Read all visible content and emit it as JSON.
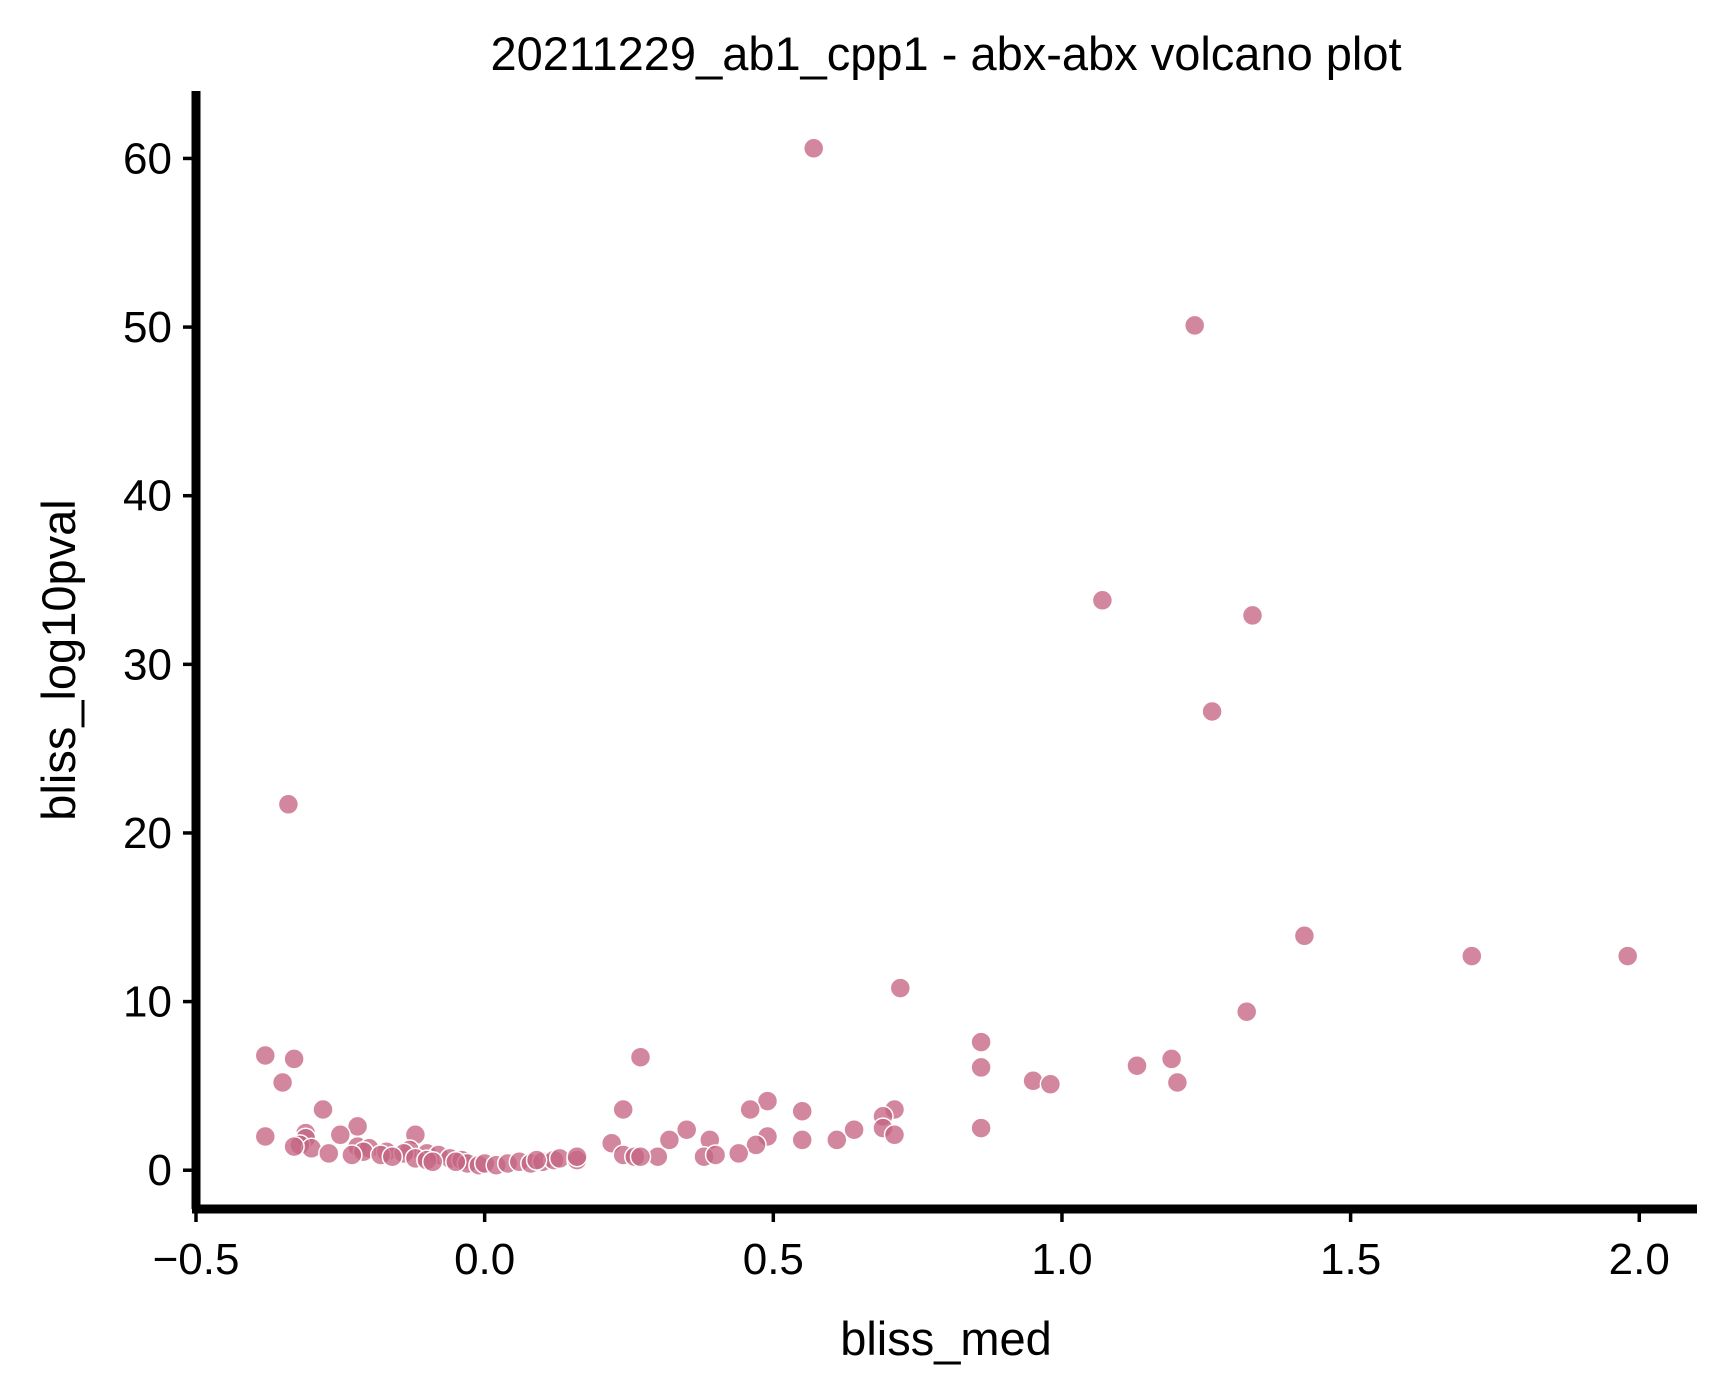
{
  "chart_data": {
    "type": "scatter",
    "title": "20211229_ab1_cpp1 - abx-abx volcano plot",
    "xlabel": "bliss_med",
    "ylabel": "bliss_log10pval",
    "xlim": [
      -0.5,
      2.1
    ],
    "ylim": [
      -2.3,
      64
    ],
    "xticks": [
      -0.5,
      0.0,
      0.5,
      1.0,
      1.5,
      2.0
    ],
    "xtick_labels": [
      "−0.5",
      "0.0",
      "0.5",
      "1.0",
      "1.5",
      "2.0"
    ],
    "yticks": [
      0,
      10,
      20,
      30,
      40,
      50,
      60
    ],
    "ytick_labels": [
      "0",
      "10",
      "20",
      "30",
      "40",
      "50",
      "60"
    ],
    "grid": false,
    "point_color": "#c56583",
    "point_edge_color": "#ffffff",
    "axis_color": "#000000",
    "points": [
      {
        "x": 0.57,
        "y": 60.6
      },
      {
        "x": 1.23,
        "y": 50.1
      },
      {
        "x": 1.07,
        "y": 33.8
      },
      {
        "x": 1.33,
        "y": 32.9
      },
      {
        "x": 1.26,
        "y": 27.2
      },
      {
        "x": -0.34,
        "y": 21.7
      },
      {
        "x": 1.42,
        "y": 13.9
      },
      {
        "x": 1.71,
        "y": 12.7
      },
      {
        "x": 1.98,
        "y": 12.7
      },
      {
        "x": 0.72,
        "y": 10.8
      },
      {
        "x": 1.32,
        "y": 9.4
      },
      {
        "x": 0.86,
        "y": 7.6
      },
      {
        "x": -0.38,
        "y": 6.8
      },
      {
        "x": -0.33,
        "y": 6.6
      },
      {
        "x": 0.27,
        "y": 6.7
      },
      {
        "x": 1.19,
        "y": 6.6
      },
      {
        "x": 0.86,
        "y": 6.1
      },
      {
        "x": 1.13,
        "y": 6.2
      },
      {
        "x": 0.95,
        "y": 5.3
      },
      {
        "x": 0.98,
        "y": 5.1
      },
      {
        "x": -0.35,
        "y": 5.2
      },
      {
        "x": 1.2,
        "y": 5.2
      },
      {
        "x": 0.49,
        "y": 4.1
      },
      {
        "x": -0.28,
        "y": 3.6
      },
      {
        "x": 0.24,
        "y": 3.6
      },
      {
        "x": 0.46,
        "y": 3.6
      },
      {
        "x": 0.55,
        "y": 3.5
      },
      {
        "x": 0.71,
        "y": 3.6
      },
      {
        "x": 0.69,
        "y": 3.2
      },
      {
        "x": 0.86,
        "y": 2.5
      },
      {
        "x": -0.22,
        "y": 2.6
      },
      {
        "x": 0.64,
        "y": 2.4
      },
      {
        "x": 0.69,
        "y": 2.5
      },
      {
        "x": 0.35,
        "y": 2.4
      },
      {
        "x": -0.31,
        "y": 2.2
      },
      {
        "x": -0.25,
        "y": 2.1
      },
      {
        "x": -0.12,
        "y": 2.1
      },
      {
        "x": -0.38,
        "y": 2.0
      },
      {
        "x": -0.31,
        "y": 1.9
      },
      {
        "x": 0.49,
        "y": 2.0
      },
      {
        "x": 0.71,
        "y": 2.1
      },
      {
        "x": 0.55,
        "y": 1.8
      },
      {
        "x": 0.61,
        "y": 1.8
      },
      {
        "x": 0.32,
        "y": 1.8
      },
      {
        "x": 0.39,
        "y": 1.8
      },
      {
        "x": 0.22,
        "y": 1.6
      },
      {
        "x": 0.47,
        "y": 1.5
      },
      {
        "x": -0.32,
        "y": 1.5
      },
      {
        "x": -0.3,
        "y": 1.3
      },
      {
        "x": -0.33,
        "y": 1.4
      },
      {
        "x": -0.22,
        "y": 1.4
      },
      {
        "x": -0.2,
        "y": 1.3
      },
      {
        "x": -0.21,
        "y": 1.1
      },
      {
        "x": -0.17,
        "y": 1.1
      },
      {
        "x": -0.13,
        "y": 1.2
      },
      {
        "x": -0.14,
        "y": 1.0
      },
      {
        "x": -0.1,
        "y": 1.0
      },
      {
        "x": -0.08,
        "y": 0.9
      },
      {
        "x": -0.27,
        "y": 1.0
      },
      {
        "x": -0.23,
        "y": 0.9
      },
      {
        "x": -0.18,
        "y": 0.9
      },
      {
        "x": -0.16,
        "y": 0.8
      },
      {
        "x": -0.12,
        "y": 0.7
      },
      {
        "x": -0.1,
        "y": 0.6
      },
      {
        "x": -0.06,
        "y": 0.7
      },
      {
        "x": -0.04,
        "y": 0.6
      },
      {
        "x": -0.03,
        "y": 0.4
      },
      {
        "x": -0.01,
        "y": 0.3
      },
      {
        "x": 0.0,
        "y": 0.4
      },
      {
        "x": 0.02,
        "y": 0.3
      },
      {
        "x": 0.04,
        "y": 0.4
      },
      {
        "x": 0.06,
        "y": 0.5
      },
      {
        "x": 0.08,
        "y": 0.4
      },
      {
        "x": 0.1,
        "y": 0.5
      },
      {
        "x": 0.12,
        "y": 0.6
      },
      {
        "x": 0.13,
        "y": 0.7
      },
      {
        "x": 0.16,
        "y": 0.6
      },
      {
        "x": 0.16,
        "y": 0.8
      },
      {
        "x": 0.09,
        "y": 0.6
      },
      {
        "x": -0.09,
        "y": 0.5
      },
      {
        "x": -0.05,
        "y": 0.5
      },
      {
        "x": 0.24,
        "y": 0.9
      },
      {
        "x": 0.26,
        "y": 0.8
      },
      {
        "x": 0.3,
        "y": 0.8
      },
      {
        "x": 0.38,
        "y": 0.8
      },
      {
        "x": 0.4,
        "y": 0.9
      },
      {
        "x": 0.44,
        "y": 1.0
      },
      {
        "x": 0.27,
        "y": 0.8
      }
    ]
  }
}
